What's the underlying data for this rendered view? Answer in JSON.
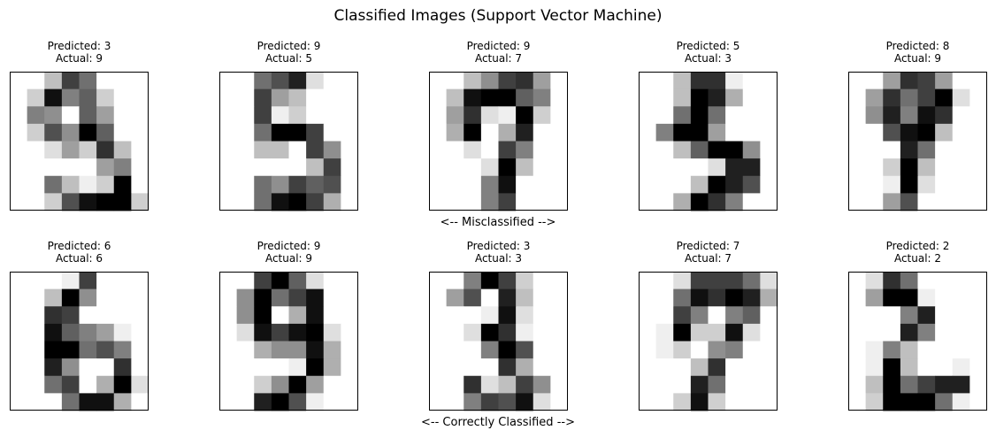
{
  "figure": {
    "title": "Classified Images (Support Vector Machine)",
    "row_captions": [
      "<-- Misclassified -->",
      "<-- Correctly Classified -->"
    ]
  },
  "colormap": {
    "low": "#ffffff",
    "high": "#000000"
  },
  "chart_data": {
    "type": "heatmap",
    "value_range": [
      0,
      16
    ],
    "title": "Classified Images (Support Vector Machine)",
    "panels": [
      {
        "predicted_label": "Predicted: 3",
        "actual_label": "Actual: 9",
        "predicted": 3,
        "actual": 9,
        "pixels": [
          [
            0,
            0,
            4,
            12,
            9,
            0,
            0,
            0
          ],
          [
            0,
            3,
            15,
            8,
            10,
            3,
            0,
            0
          ],
          [
            0,
            8,
            7,
            0,
            10,
            6,
            0,
            0
          ],
          [
            0,
            3,
            11,
            7,
            16,
            10,
            0,
            0
          ],
          [
            0,
            0,
            2,
            6,
            3,
            13,
            4,
            0
          ],
          [
            0,
            0,
            0,
            0,
            0,
            6,
            8,
            0
          ],
          [
            0,
            0,
            9,
            4,
            1,
            3,
            16,
            0
          ],
          [
            0,
            0,
            3,
            11,
            15,
            16,
            16,
            3
          ]
        ]
      },
      {
        "predicted_label": "Predicted: 9",
        "actual_label": "Actual: 5",
        "predicted": 9,
        "actual": 5,
        "pixels": [
          [
            0,
            0,
            9,
            11,
            14,
            2,
            0,
            0
          ],
          [
            0,
            0,
            12,
            6,
            4,
            0,
            0,
            0
          ],
          [
            0,
            0,
            12,
            1,
            3,
            0,
            0,
            0
          ],
          [
            0,
            0,
            9,
            16,
            16,
            12,
            0,
            0
          ],
          [
            0,
            0,
            4,
            4,
            0,
            12,
            7,
            0
          ],
          [
            0,
            0,
            0,
            0,
            0,
            4,
            12,
            0
          ],
          [
            0,
            0,
            9,
            7,
            12,
            10,
            11,
            0
          ],
          [
            0,
            0,
            9,
            15,
            16,
            12,
            5,
            0
          ]
        ]
      },
      {
        "predicted_label": "Predicted: 9",
        "actual_label": "Actual: 7",
        "predicted": 9,
        "actual": 7,
        "pixels": [
          [
            0,
            0,
            4,
            7,
            12,
            13,
            6,
            0
          ],
          [
            0,
            4,
            15,
            16,
            16,
            10,
            8,
            0
          ],
          [
            0,
            6,
            13,
            2,
            1,
            16,
            3,
            0
          ],
          [
            0,
            5,
            16,
            0,
            5,
            14,
            0,
            0
          ],
          [
            0,
            0,
            2,
            0,
            12,
            8,
            0,
            0
          ],
          [
            0,
            0,
            0,
            2,
            16,
            4,
            0,
            0
          ],
          [
            0,
            0,
            0,
            8,
            15,
            0,
            0,
            0
          ],
          [
            0,
            0,
            0,
            8,
            12,
            0,
            0,
            0
          ]
        ]
      },
      {
        "predicted_label": "Predicted: 5",
        "actual_label": "Actual: 3",
        "predicted": 5,
        "actual": 3,
        "pixels": [
          [
            0,
            0,
            4,
            13,
            13,
            1,
            0,
            0
          ],
          [
            0,
            0,
            4,
            16,
            14,
            5,
            0,
            0
          ],
          [
            0,
            0,
            9,
            16,
            9,
            0,
            0,
            0
          ],
          [
            0,
            8,
            16,
            16,
            6,
            0,
            0,
            0
          ],
          [
            0,
            0,
            4,
            10,
            16,
            16,
            7,
            0
          ],
          [
            0,
            0,
            0,
            0,
            2,
            14,
            14,
            0
          ],
          [
            0,
            0,
            0,
            4,
            16,
            14,
            11,
            0
          ],
          [
            0,
            0,
            5,
            16,
            13,
            8,
            0,
            0
          ]
        ]
      },
      {
        "predicted_label": "Predicted: 8",
        "actual_label": "Actual: 9",
        "predicted": 8,
        "actual": 9,
        "pixels": [
          [
            0,
            0,
            6,
            13,
            12,
            6,
            0,
            0
          ],
          [
            0,
            6,
            13,
            9,
            12,
            16,
            2,
            0
          ],
          [
            0,
            7,
            14,
            8,
            15,
            13,
            0,
            0
          ],
          [
            0,
            0,
            11,
            15,
            16,
            4,
            0,
            0
          ],
          [
            0,
            0,
            0,
            14,
            9,
            0,
            0,
            0
          ],
          [
            0,
            0,
            3,
            16,
            4,
            0,
            0,
            0
          ],
          [
            0,
            0,
            1,
            16,
            2,
            0,
            0,
            0
          ],
          [
            0,
            0,
            6,
            11,
            0,
            0,
            0,
            0
          ]
        ]
      },
      {
        "predicted_label": "Predicted: 6",
        "actual_label": "Actual: 6",
        "predicted": 6,
        "actual": 6,
        "pixels": [
          [
            0,
            0,
            0,
            1,
            12,
            0,
            0,
            0
          ],
          [
            0,
            0,
            4,
            16,
            7,
            0,
            0,
            0
          ],
          [
            0,
            0,
            13,
            12,
            0,
            0,
            0,
            0
          ],
          [
            0,
            0,
            15,
            10,
            8,
            6,
            1,
            0
          ],
          [
            0,
            0,
            16,
            16,
            9,
            11,
            8,
            0
          ],
          [
            0,
            0,
            14,
            7,
            0,
            0,
            13,
            0
          ],
          [
            0,
            0,
            9,
            12,
            0,
            5,
            16,
            2
          ],
          [
            0,
            0,
            0,
            9,
            15,
            15,
            5,
            0
          ]
        ]
      },
      {
        "predicted_label": "Predicted: 9",
        "actual_label": "Actual: 9",
        "predicted": 9,
        "actual": 9,
        "pixels": [
          [
            0,
            0,
            12,
            16,
            10,
            2,
            0,
            0
          ],
          [
            0,
            7,
            16,
            9,
            12,
            15,
            0,
            0
          ],
          [
            0,
            7,
            16,
            0,
            5,
            15,
            0,
            0
          ],
          [
            0,
            2,
            15,
            12,
            15,
            16,
            2,
            0
          ],
          [
            0,
            0,
            5,
            7,
            7,
            15,
            5,
            0
          ],
          [
            0,
            0,
            0,
            0,
            1,
            16,
            5,
            0
          ],
          [
            0,
            0,
            3,
            7,
            16,
            6,
            0,
            0
          ],
          [
            0,
            0,
            14,
            16,
            11,
            1,
            0,
            0
          ]
        ]
      },
      {
        "predicted_label": "Predicted: 3",
        "actual_label": "Actual: 3",
        "predicted": 3,
        "actual": 3,
        "pixels": [
          [
            0,
            0,
            8,
            16,
            12,
            3,
            0,
            0
          ],
          [
            0,
            6,
            11,
            0,
            14,
            4,
            0,
            0
          ],
          [
            0,
            0,
            0,
            1,
            15,
            2,
            0,
            0
          ],
          [
            0,
            0,
            2,
            16,
            13,
            1,
            0,
            0
          ],
          [
            0,
            0,
            0,
            8,
            16,
            11,
            0,
            0
          ],
          [
            0,
            0,
            0,
            0,
            13,
            5,
            0,
            0
          ],
          [
            0,
            0,
            13,
            2,
            4,
            12,
            7,
            0
          ],
          [
            0,
            0,
            8,
            12,
            11,
            15,
            2,
            0
          ]
        ]
      },
      {
        "predicted_label": "Predicted: 7",
        "actual_label": "Actual: 7",
        "predicted": 7,
        "actual": 7,
        "pixels": [
          [
            0,
            0,
            2,
            12,
            12,
            12,
            9,
            2
          ],
          [
            0,
            0,
            9,
            15,
            13,
            16,
            14,
            5
          ],
          [
            0,
            0,
            12,
            8,
            0,
            8,
            10,
            0
          ],
          [
            0,
            1,
            16,
            3,
            3,
            15,
            2,
            0
          ],
          [
            0,
            1,
            3,
            0,
            7,
            8,
            0,
            0
          ],
          [
            0,
            0,
            0,
            4,
            13,
            0,
            0,
            0
          ],
          [
            0,
            0,
            0,
            14,
            9,
            0,
            0,
            0
          ],
          [
            0,
            0,
            3,
            15,
            3,
            0,
            0,
            0
          ]
        ]
      },
      {
        "predicted_label": "Predicted: 2",
        "actual_label": "Actual: 2",
        "predicted": 2,
        "actual": 2,
        "pixels": [
          [
            0,
            2,
            13,
            9,
            0,
            0,
            0,
            0
          ],
          [
            0,
            6,
            16,
            16,
            1,
            0,
            0,
            0
          ],
          [
            0,
            0,
            0,
            8,
            14,
            0,
            0,
            0
          ],
          [
            0,
            0,
            0,
            14,
            8,
            0,
            0,
            0
          ],
          [
            0,
            1,
            8,
            4,
            0,
            0,
            0,
            0
          ],
          [
            0,
            1,
            16,
            4,
            0,
            0,
            1,
            0
          ],
          [
            0,
            4,
            16,
            9,
            12,
            14,
            14,
            0
          ],
          [
            0,
            3,
            16,
            16,
            16,
            9,
            1,
            0
          ]
        ]
      }
    ]
  }
}
